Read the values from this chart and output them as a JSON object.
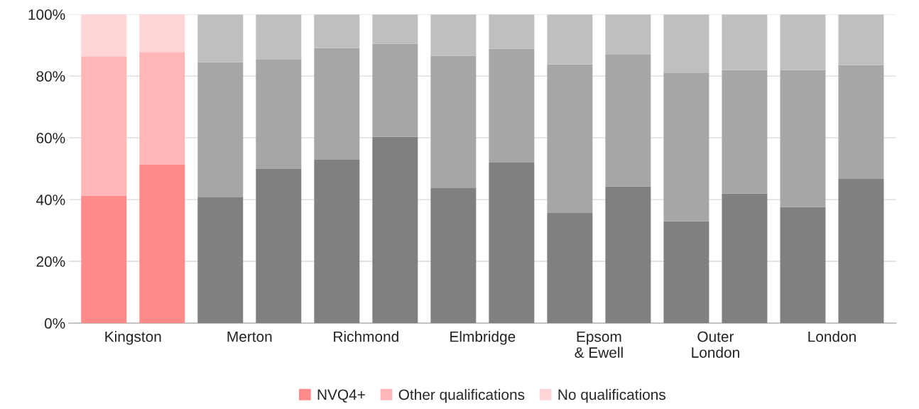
{
  "chart_data": {
    "type": "bar",
    "stacked": true,
    "categories": [
      "Kingston",
      null,
      "Merton",
      null,
      "Richmond",
      null,
      "Elmbridge",
      null,
      "Epsom\n& Ewell",
      null,
      "Outer\nLondon",
      null,
      "London",
      null
    ],
    "series": [
      {
        "name": "NVQ4+",
        "color": "#ff8a8a",
        "colors": [
          "#ff8a8a",
          "#ff8a8a",
          "#808080",
          "#808080",
          "#808080",
          "#808080",
          "#808080",
          "#808080",
          "#808080",
          "#808080",
          "#808080",
          "#808080",
          "#808080",
          "#808080"
        ],
        "values": [
          41.3,
          51.3,
          40.9,
          49.9,
          52.9,
          60.3,
          43.9,
          52.0,
          35.8,
          44.3,
          33.0,
          42.0,
          37.6,
          46.7
        ]
      },
      {
        "name": "Other qualifications",
        "color": "#ffb6b6",
        "colors": [
          "#ffb6b6",
          "#ffb6b6",
          "#a6a6a6",
          "#a6a6a6",
          "#a6a6a6",
          "#a6a6a6",
          "#a6a6a6",
          "#a6a6a6",
          "#a6a6a6",
          "#a6a6a6",
          "#a6a6a6",
          "#a6a6a6",
          "#a6a6a6",
          "#a6a6a6"
        ],
        "values": [
          45.1,
          36.5,
          43.6,
          35.6,
          36.2,
          30.2,
          42.7,
          36.9,
          48.0,
          42.8,
          48.1,
          40.0,
          44.4,
          36.9
        ]
      },
      {
        "name": "No qualifications",
        "color": "#ffd5d8",
        "colors": [
          "#ffd5d8",
          "#ffd5d8",
          "#bfbfbf",
          "#bfbfbf",
          "#bfbfbf",
          "#bfbfbf",
          "#bfbfbf",
          "#bfbfbf",
          "#bfbfbf",
          "#bfbfbf",
          "#bfbfbf",
          "#bfbfbf",
          "#bfbfbf",
          "#bfbfbf"
        ],
        "values": [
          13.6,
          12.2,
          15.5,
          14.5,
          10.9,
          9.5,
          13.4,
          11.1,
          16.2,
          12.9,
          18.9,
          18.0,
          18.0,
          16.4
        ]
      }
    ],
    "ylim": [
      0,
      100
    ],
    "yticks": [
      {
        "value": 0,
        "label": "0%"
      },
      {
        "value": 20,
        "label": "20%"
      },
      {
        "value": 40,
        "label": "40%"
      },
      {
        "value": 60,
        "label": "60%"
      },
      {
        "value": 80,
        "label": "80%"
      },
      {
        "value": 100,
        "label": "100%"
      }
    ],
    "grid": "y",
    "legend": "bottom"
  }
}
